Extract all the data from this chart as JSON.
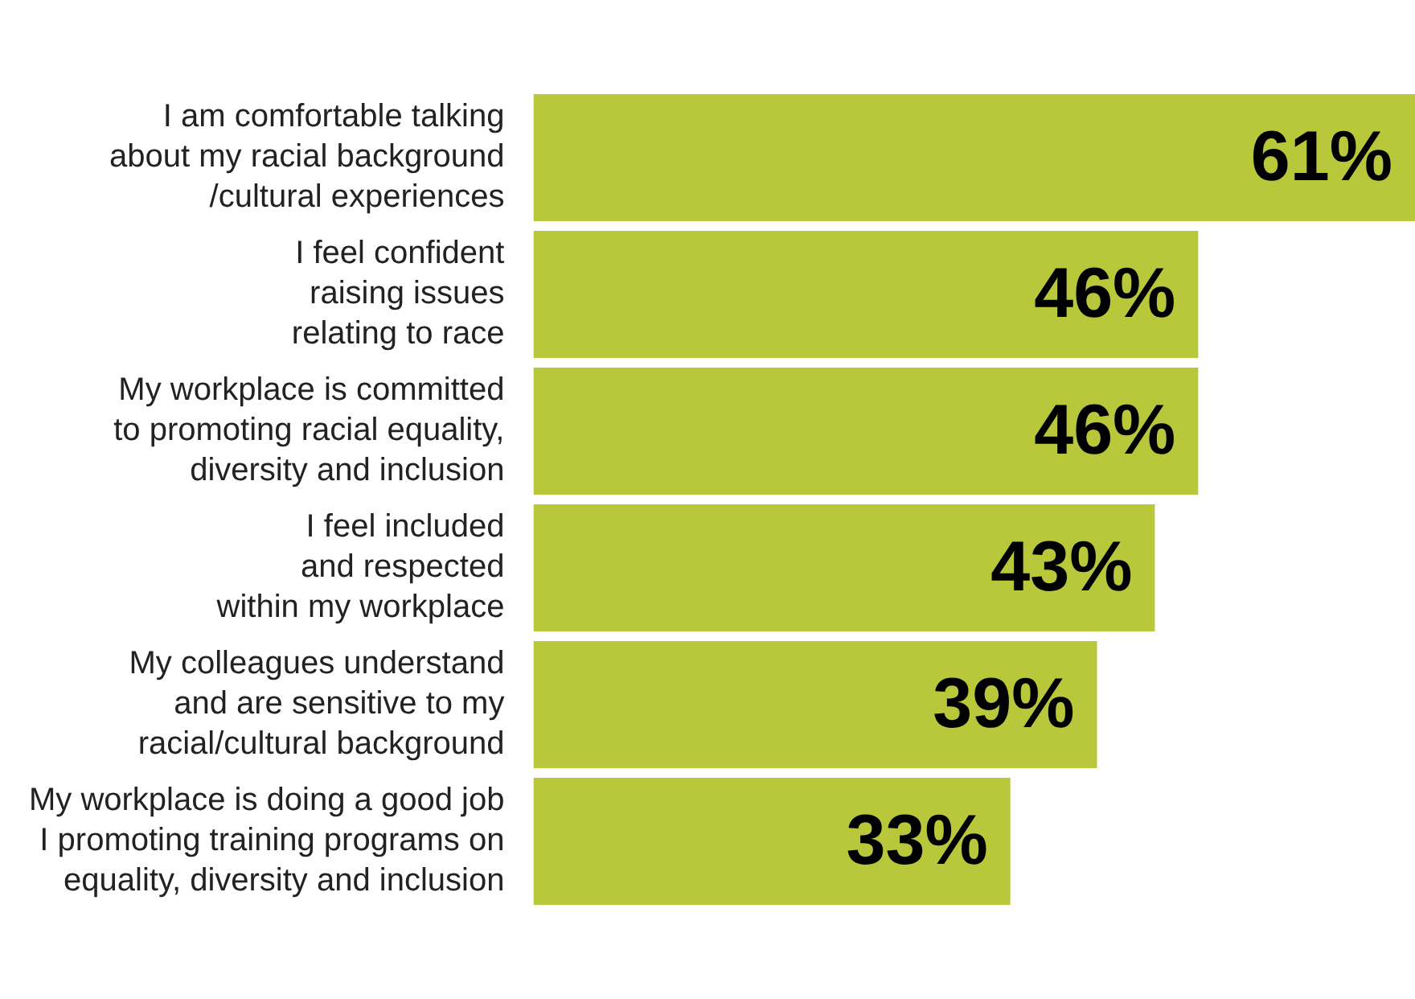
{
  "chart_data": {
    "type": "bar",
    "orientation": "horizontal",
    "data_labels": true,
    "grid": false,
    "legend": false,
    "color": "#b9c73a",
    "categories": [
      "I am comfortable talking\nabout my racial background\n/cultural experiences",
      "I feel confident\nraising issues\nrelating to race",
      "My workplace is committed\nto promoting racial equality,\ndiversity and inclusion",
      "I feel included\nand respected\nwithin my workplace",
      "My colleagues understand\nand are sensitive to my\nracial/cultural background",
      "My workplace is doing a good job\nI promoting training programs on\nequality, diversity and inclusion"
    ],
    "values": [
      61,
      46,
      46,
      43,
      39,
      33
    ],
    "value_labels": [
      "61%",
      "46%",
      "46%",
      "43%",
      "39%",
      "33%"
    ]
  }
}
